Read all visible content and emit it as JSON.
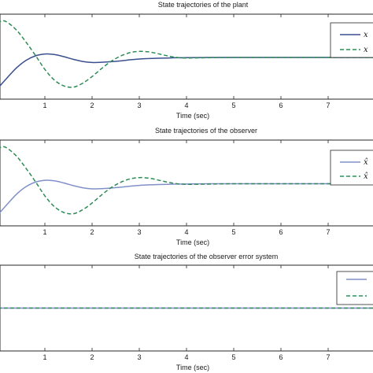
{
  "chart_data": [
    {
      "type": "line",
      "title": "State trajectories of the plant",
      "xlabel": "Time (sec)",
      "ylabel": "",
      "xlim": [
        0,
        8
      ],
      "ylim": [
        -1.6,
        1.6
      ],
      "xticks": [
        "1",
        "2",
        "3",
        "4",
        "5",
        "6",
        "7"
      ],
      "grid": false,
      "legend": "right",
      "legend_labels": [
        "x",
        "x"
      ],
      "series": [
        {
          "color": "#3a4f8f",
          "style": "solid",
          "x": [
            0,
            0.2,
            0.4,
            0.6,
            0.8,
            1.0,
            1.2,
            1.4,
            1.6,
            1.8,
            2.0,
            2.2,
            2.4,
            2.6,
            2.8,
            3.0,
            3.2,
            3.4,
            3.6,
            3.8,
            4.0,
            4.5,
            5.0,
            6.0,
            7.0,
            8.0
          ],
          "values": [
            -1.2,
            -0.8,
            -0.42,
            -0.14,
            0.03,
            0.1,
            0.08,
            0.0,
            -0.1,
            -0.18,
            -0.22,
            -0.21,
            -0.19,
            -0.16,
            -0.12,
            -0.09,
            -0.07,
            -0.06,
            -0.05,
            -0.04,
            -0.04,
            -0.03,
            -0.03,
            -0.03,
            -0.03,
            -0.03
          ]
        },
        {
          "color": "#2e8b57",
          "style": "dashed",
          "x": [
            0,
            0.1,
            0.2,
            0.4,
            0.6,
            0.8,
            1.0,
            1.2,
            1.4,
            1.6,
            1.8,
            2.0,
            2.2,
            2.4,
            2.6,
            2.8,
            3.0,
            3.2,
            3.4,
            3.6,
            3.8,
            4.0,
            4.5,
            5.0,
            6.0,
            7.0,
            8.0
          ],
          "values": [
            1.25,
            1.35,
            1.3,
            1.0,
            0.55,
            0.05,
            -0.48,
            -0.88,
            -1.1,
            -1.15,
            -1.0,
            -0.75,
            -0.45,
            -0.18,
            0.02,
            0.15,
            0.2,
            0.18,
            0.11,
            0.03,
            -0.03,
            -0.05,
            -0.04,
            -0.03,
            -0.03,
            -0.03,
            -0.03
          ]
        }
      ]
    },
    {
      "type": "line",
      "title": "State trajectories of the observer",
      "xlabel": "Time (sec)",
      "ylabel": "",
      "xlim": [
        0,
        8
      ],
      "ylim": [
        -1.6,
        1.6
      ],
      "xticks": [
        "1",
        "2",
        "3",
        "4",
        "5",
        "6",
        "7"
      ],
      "grid": false,
      "legend": "right",
      "legend_labels": [
        "x̂",
        "x̂"
      ],
      "series": [
        {
          "color": "#8090c8",
          "style": "solid",
          "x": [
            0,
            0.2,
            0.4,
            0.6,
            0.8,
            1.0,
            1.2,
            1.4,
            1.6,
            1.8,
            2.0,
            2.2,
            2.4,
            2.6,
            2.8,
            3.0,
            3.2,
            3.4,
            3.6,
            3.8,
            4.0,
            4.5,
            5.0,
            6.0,
            7.0,
            8.0
          ],
          "values": [
            -1.2,
            -0.8,
            -0.42,
            -0.14,
            0.03,
            0.1,
            0.08,
            0.0,
            -0.1,
            -0.18,
            -0.22,
            -0.21,
            -0.19,
            -0.16,
            -0.12,
            -0.09,
            -0.07,
            -0.06,
            -0.05,
            -0.04,
            -0.04,
            -0.03,
            -0.03,
            -0.03,
            -0.03,
            -0.03
          ]
        },
        {
          "color": "#2e8b57",
          "style": "dashed",
          "x": [
            0,
            0.1,
            0.2,
            0.4,
            0.6,
            0.8,
            1.0,
            1.2,
            1.4,
            1.6,
            1.8,
            2.0,
            2.2,
            2.4,
            2.6,
            2.8,
            3.0,
            3.2,
            3.4,
            3.6,
            3.8,
            4.0,
            4.5,
            5.0,
            6.0,
            7.0,
            8.0
          ],
          "values": [
            1.25,
            1.35,
            1.3,
            1.0,
            0.55,
            0.05,
            -0.48,
            -0.88,
            -1.1,
            -1.15,
            -1.0,
            -0.75,
            -0.45,
            -0.18,
            0.02,
            0.15,
            0.2,
            0.18,
            0.11,
            0.03,
            -0.03,
            -0.05,
            -0.04,
            -0.03,
            -0.03,
            -0.03,
            -0.03
          ]
        }
      ]
    },
    {
      "type": "line",
      "title": "State trajectories of the observer error system",
      "xlabel": "Time (sec)",
      "ylabel": "",
      "xlim": [
        0,
        8
      ],
      "ylim": [
        -1.6,
        1.6
      ],
      "xticks": [
        "1",
        "2",
        "3",
        "4",
        "5",
        "6",
        "7"
      ],
      "grid": false,
      "legend": "right",
      "legend_labels": [
        "",
        ""
      ],
      "series": [
        {
          "color": "#8090c8",
          "style": "solid",
          "x": [
            0,
            8
          ],
          "values": [
            0,
            0
          ]
        },
        {
          "color": "#2e8b57",
          "style": "dashed",
          "x": [
            0,
            8
          ],
          "values": [
            0,
            0
          ]
        }
      ]
    }
  ]
}
